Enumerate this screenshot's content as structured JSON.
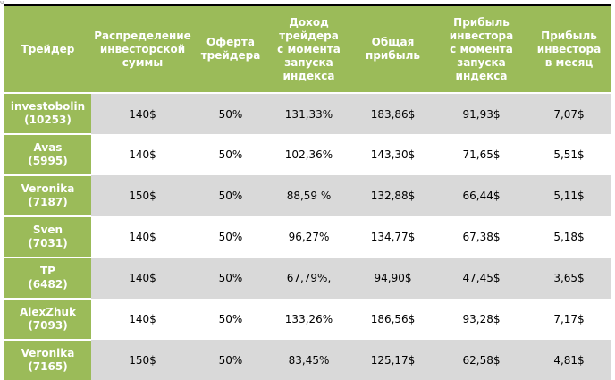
{
  "corner_mark": "ч",
  "headers": [
    [
      "Трейдер"
    ],
    [
      "Распределение",
      "инвесторской",
      "суммы"
    ],
    [
      "Оферта",
      "трейдера"
    ],
    [
      "Доход",
      "трейдера",
      "с момента",
      "запуска",
      "индекса"
    ],
    [
      "Общая",
      "прибыль"
    ],
    [
      "Прибыль",
      "инвестора",
      "с момента",
      "запуска",
      "индекса"
    ],
    [
      "Прибыль",
      "инвестора",
      "в месяц"
    ]
  ],
  "rows": [
    {
      "name": "investobolin",
      "id": "(10253)",
      "distribution": "140$",
      "offer": "50%",
      "trader_income": "131,33%",
      "total_profit": "183,86$",
      "investor_profit": "91,93$",
      "monthly_profit": "7,07$"
    },
    {
      "name": "Avas",
      "id": "(5995)",
      "distribution": "140$",
      "offer": "50%",
      "trader_income": "102,36%",
      "total_profit": "143,30$",
      "investor_profit": "71,65$",
      "monthly_profit": "5,51$"
    },
    {
      "name": "Veronika",
      "id": "(7187)",
      "distribution": "150$",
      "offer": "50%",
      "trader_income": "88,59 %",
      "total_profit": "132,88$",
      "investor_profit": "66,44$",
      "monthly_profit": "5,11$"
    },
    {
      "name": "Sven",
      "id": "(7031)",
      "distribution": "140$",
      "offer": "50%",
      "trader_income": "96,27%",
      "total_profit": "134,77$",
      "investor_profit": "67,38$",
      "monthly_profit": "5,18$"
    },
    {
      "name": "TP",
      "id": "(6482)",
      "distribution": "140$",
      "offer": "50%",
      "trader_income": "67,79%,",
      "total_profit": "94,90$",
      "investor_profit": "47,45$",
      "monthly_profit": "3,65$"
    },
    {
      "name": "AlexZhuk",
      "id": "(7093)",
      "distribution": "140$",
      "offer": "50%",
      "trader_income": "133,26%",
      "total_profit": "186,56$",
      "investor_profit": "93,28$",
      "monthly_profit": "7,17$"
    },
    {
      "name": "Veronika",
      "id": "(7165)",
      "distribution": "150$",
      "offer": "50%",
      "trader_income": "83,45%",
      "total_profit": "125,17$",
      "investor_profit": "62,58$",
      "monthly_profit": "4,81$"
    }
  ],
  "colors": {
    "header_bg": "#9bbb59",
    "header_text": "#ffffff",
    "band_gray": "#d9d9d9",
    "band_white": "#ffffff"
  }
}
